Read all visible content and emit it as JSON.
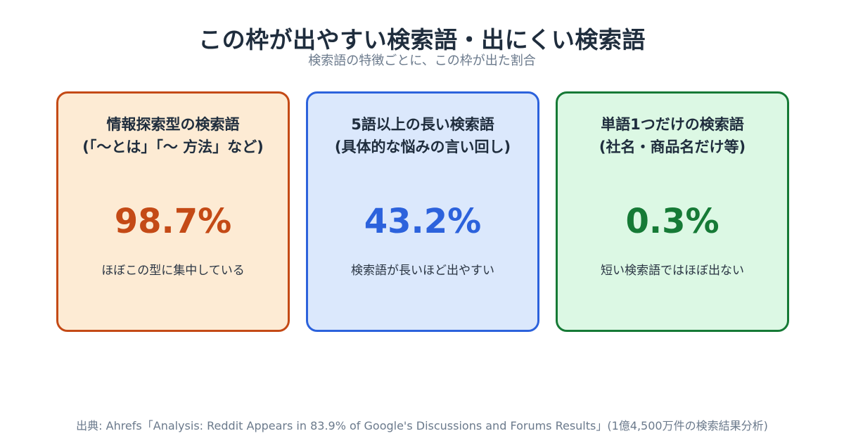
{
  "title": "この枠が出やすい検索語・出にくい検索語",
  "subtitle": "検索語の特徴ごとに、この枠が出た割合",
  "chart_data": {
    "type": "table",
    "categories": [
      "情報探索型の検索語（「〜とは」「〜 方法」など）",
      "5語以上の長い検索語（具体的な悩みの言い回し）",
      "単語1つだけの検索語（社名・商品名だけ等）"
    ],
    "values": [
      98.7,
      43.2,
      0.3
    ],
    "unit": "%"
  },
  "cards": [
    {
      "heading_line1": "情報探索型の検索語",
      "heading_line2": "(「〜とは」「〜 方法」など)",
      "value_label": "98.7%",
      "note": "ほぼこの型に集中している",
      "accent": "#c44a16",
      "bg": "#fdebd4"
    },
    {
      "heading_line1": "5語以上の長い検索語",
      "heading_line2": "(具体的な悩みの言い回し)",
      "value_label": "43.2%",
      "note": "検索語が長いほど出やすい",
      "accent": "#2c62dc",
      "bg": "#dbe8fc"
    },
    {
      "heading_line1": "単語1つだけの検索語",
      "heading_line2": "(社名・商品名だけ等)",
      "value_label": "0.3%",
      "note": "短い検索語ではほぼ出ない",
      "accent": "#167a36",
      "bg": "#dcf8e4"
    }
  ],
  "source": "出典: Ahrefs「Analysis: Reddit Appears in 83.9% of Google's Discussions and Forums Results」(1億4,500万件の検索結果分析)"
}
